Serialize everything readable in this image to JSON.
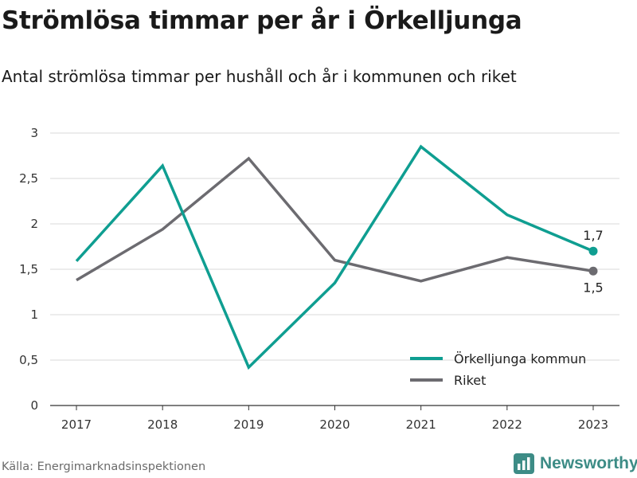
{
  "title": "Strömlösa timmar per år i Örkelljunga",
  "subtitle": "Antal strömlösa timmar per hushåll och år i kommunen och riket",
  "source": "Källa: Energimarknadsinspektionen",
  "brand": {
    "name": "Newsworthy",
    "icon": "newsworthy-logo-icon",
    "color": "#3d8c86"
  },
  "chart_data": {
    "type": "line",
    "x": [
      "2017",
      "2018",
      "2019",
      "2020",
      "2021",
      "2022",
      "2023"
    ],
    "ylim": [
      0,
      3
    ],
    "yticks": [
      {
        "value": 0,
        "label": "0"
      },
      {
        "value": 0.5,
        "label": "0,5"
      },
      {
        "value": 1,
        "label": "1"
      },
      {
        "value": 1.5,
        "label": "1,5"
      },
      {
        "value": 2,
        "label": "2"
      },
      {
        "value": 2.5,
        "label": "2,5"
      },
      {
        "value": 3,
        "label": "3"
      }
    ],
    "grid": true,
    "legend_position": "bottom-right",
    "series": [
      {
        "name": "Örkelljunga kommun",
        "color": "#0f9e91",
        "values": [
          1.59,
          2.64,
          0.42,
          1.35,
          2.85,
          2.1,
          1.7
        ],
        "end_label": "1,7",
        "end_label_position": "above"
      },
      {
        "name": "Riket",
        "color": "#6c6b70",
        "values": [
          1.38,
          1.94,
          2.72,
          1.6,
          1.37,
          1.63,
          1.48
        ],
        "end_label": "1,5",
        "end_label_position": "below"
      }
    ]
  }
}
